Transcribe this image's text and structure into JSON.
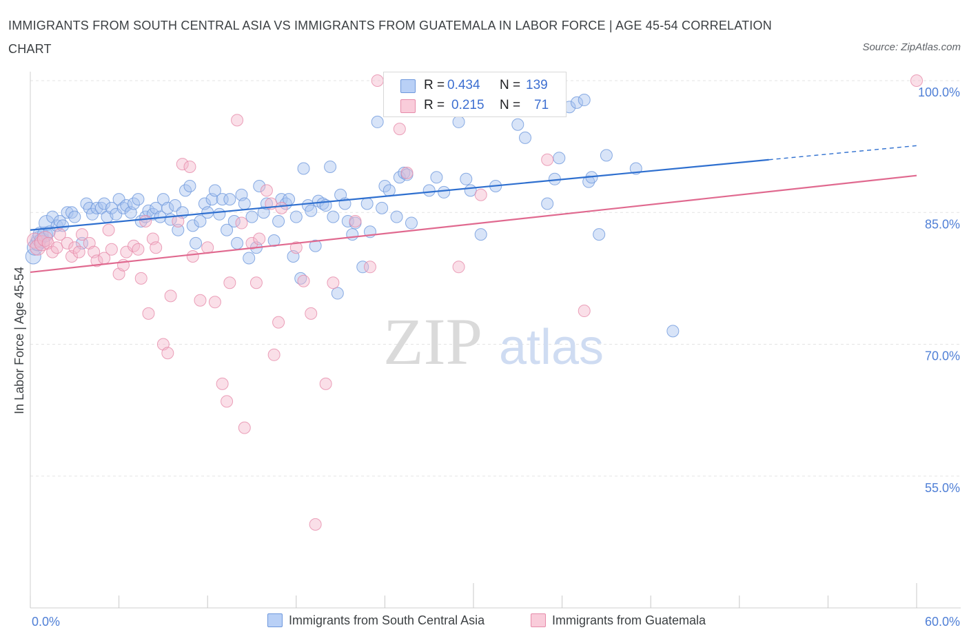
{
  "title": "IMMIGRANTS FROM SOUTH CENTRAL ASIA VS IMMIGRANTS FROM GUATEMALA IN LABOR FORCE | AGE 45-54 CORRELATION CHART",
  "source": "Source: ZipAtlas.com",
  "watermark": {
    "zip": "ZIP",
    "atlas": "atlas"
  },
  "legend_top": [
    {
      "r_label": "R =",
      "r_value": "0.434",
      "n_label": "N =",
      "n_value": "139"
    },
    {
      "r_label": "R =",
      "r_value": "0.215",
      "n_label": "N =",
      "n_value": "71"
    }
  ],
  "legend_bottom": [
    "Immigrants from South Central Asia",
    "Immigrants from Guatemala"
  ],
  "colors": {
    "blue_fill": "#a8c4f0",
    "blue_stroke": "#6d97dc",
    "blue_line": "#2e6fcf",
    "pink_fill": "#f5b8cc",
    "pink_stroke": "#e68aa9",
    "pink_line": "#e0698f",
    "tick_text": "#4f7fd6"
  },
  "chart_data": {
    "type": "scatter",
    "xlabel": "",
    "ylabel": "In Labor Force | Age 45-54",
    "xlim": [
      0,
      60
    ],
    "ylim": [
      40,
      100
    ],
    "x_ticks": [
      {
        "v": 0,
        "label": "0.0%"
      },
      {
        "v": 60,
        "label": "60.0%"
      }
    ],
    "y_ticks": [
      {
        "v": 100,
        "label": "100.0%"
      },
      {
        "v": 85,
        "label": "85.0%"
      },
      {
        "v": 70,
        "label": "70.0%"
      },
      {
        "v": 55,
        "label": "55.0%"
      }
    ],
    "series": [
      {
        "name": "Immigrants from South Central Asia",
        "r": 0.434,
        "n": 139,
        "trend": {
          "x0": 0,
          "y0": 83.0,
          "x1": 50,
          "y1": 91.0,
          "dash_to_x": 60,
          "dash_to_y": 92.6
        },
        "points": [
          [
            0.2,
            80.0
          ],
          [
            0.3,
            81.0
          ],
          [
            0.5,
            81.5
          ],
          [
            0.6,
            82.0
          ],
          [
            0.7,
            82.5
          ],
          [
            0.8,
            81.8
          ],
          [
            1.0,
            82.5
          ],
          [
            1.1,
            83.8
          ],
          [
            1.3,
            82.8
          ],
          [
            1.5,
            84.5
          ],
          [
            1.8,
            83.5
          ],
          [
            2.0,
            84.0
          ],
          [
            2.2,
            83.5
          ],
          [
            2.5,
            85.0
          ],
          [
            2.8,
            85.0
          ],
          [
            3.0,
            84.5
          ],
          [
            3.5,
            81.5
          ],
          [
            3.8,
            86.0
          ],
          [
            4.0,
            85.5
          ],
          [
            4.2,
            84.8
          ],
          [
            4.5,
            85.5
          ],
          [
            4.8,
            85.5
          ],
          [
            5.0,
            86.0
          ],
          [
            5.2,
            84.5
          ],
          [
            5.5,
            85.5
          ],
          [
            5.8,
            84.8
          ],
          [
            6.0,
            86.5
          ],
          [
            6.3,
            85.5
          ],
          [
            6.5,
            85.8
          ],
          [
            6.8,
            85.0
          ],
          [
            7.0,
            86.0
          ],
          [
            7.3,
            86.5
          ],
          [
            7.5,
            84.0
          ],
          [
            7.8,
            84.5
          ],
          [
            8.0,
            85.2
          ],
          [
            8.3,
            84.8
          ],
          [
            8.5,
            85.5
          ],
          [
            8.8,
            84.5
          ],
          [
            9.0,
            86.5
          ],
          [
            9.3,
            85.5
          ],
          [
            9.5,
            84.2
          ],
          [
            9.8,
            85.8
          ],
          [
            10.0,
            83.0
          ],
          [
            10.3,
            85.0
          ],
          [
            10.5,
            87.5
          ],
          [
            10.8,
            88.0
          ],
          [
            11.0,
            83.5
          ],
          [
            11.2,
            81.5
          ],
          [
            11.5,
            84.0
          ],
          [
            11.8,
            86.0
          ],
          [
            12.0,
            85.0
          ],
          [
            12.3,
            86.5
          ],
          [
            12.5,
            87.5
          ],
          [
            12.8,
            84.8
          ],
          [
            13.0,
            86.5
          ],
          [
            13.3,
            83.0
          ],
          [
            13.5,
            86.5
          ],
          [
            13.8,
            84.0
          ],
          [
            14.0,
            81.5
          ],
          [
            14.3,
            87.0
          ],
          [
            14.5,
            86.0
          ],
          [
            14.8,
            79.8
          ],
          [
            15.0,
            84.5
          ],
          [
            15.3,
            81.0
          ],
          [
            15.5,
            88.0
          ],
          [
            15.8,
            85.0
          ],
          [
            16.0,
            86.0
          ],
          [
            16.5,
            81.8
          ],
          [
            16.8,
            84.0
          ],
          [
            17.0,
            86.5
          ],
          [
            17.3,
            86.0
          ],
          [
            17.5,
            86.5
          ],
          [
            17.8,
            80.0
          ],
          [
            18.0,
            84.5
          ],
          [
            18.3,
            77.5
          ],
          [
            18.5,
            90.0
          ],
          [
            18.8,
            85.8
          ],
          [
            19.0,
            85.2
          ],
          [
            19.3,
            81.2
          ],
          [
            19.5,
            86.3
          ],
          [
            19.8,
            86.0
          ],
          [
            20.0,
            85.8
          ],
          [
            20.3,
            90.2
          ],
          [
            20.5,
            84.5
          ],
          [
            20.8,
            75.8
          ],
          [
            21.0,
            87.0
          ],
          [
            21.3,
            86.0
          ],
          [
            21.5,
            84.0
          ],
          [
            21.8,
            82.5
          ],
          [
            22.0,
            83.8
          ],
          [
            22.5,
            78.8
          ],
          [
            22.8,
            86.0
          ],
          [
            23.0,
            82.8
          ],
          [
            23.5,
            95.3
          ],
          [
            23.8,
            85.5
          ],
          [
            24.0,
            88.0
          ],
          [
            24.3,
            87.5
          ],
          [
            24.8,
            84.5
          ],
          [
            25.0,
            89.0
          ],
          [
            25.3,
            89.5
          ],
          [
            25.5,
            89.3
          ],
          [
            25.8,
            83.8
          ],
          [
            27.0,
            87.5
          ],
          [
            27.5,
            89.0
          ],
          [
            28.0,
            87.3
          ],
          [
            29.0,
            95.3
          ],
          [
            29.5,
            88.8
          ],
          [
            29.8,
            87.5
          ],
          [
            30.5,
            82.5
          ],
          [
            31.5,
            88.0
          ],
          [
            33.0,
            95.0
          ],
          [
            33.5,
            93.5
          ],
          [
            35.0,
            86.0
          ],
          [
            35.5,
            88.8
          ],
          [
            35.8,
            91.2
          ],
          [
            36.5,
            97.0
          ],
          [
            37.0,
            97.5
          ],
          [
            37.5,
            97.8
          ],
          [
            37.8,
            88.5
          ],
          [
            38.0,
            89.0
          ],
          [
            38.5,
            82.5
          ],
          [
            39.0,
            91.5
          ],
          [
            41.0,
            90.0
          ],
          [
            43.5,
            71.5
          ]
        ]
      },
      {
        "name": "Immigrants from Guatemala",
        "r": 0.215,
        "n": 71,
        "trend": {
          "x0": 0,
          "y0": 78.2,
          "x1": 60,
          "y1": 89.2
        },
        "points": [
          [
            0.3,
            81.8
          ],
          [
            0.5,
            81.0
          ],
          [
            0.8,
            81.5
          ],
          [
            1.0,
            82.0
          ],
          [
            1.2,
            81.5
          ],
          [
            1.5,
            80.5
          ],
          [
            1.8,
            81.0
          ],
          [
            2.0,
            82.5
          ],
          [
            2.5,
            81.5
          ],
          [
            2.8,
            80.0
          ],
          [
            3.0,
            81.0
          ],
          [
            3.3,
            80.5
          ],
          [
            3.5,
            82.5
          ],
          [
            4.0,
            81.5
          ],
          [
            4.3,
            80.5
          ],
          [
            4.5,
            79.5
          ],
          [
            5.0,
            79.8
          ],
          [
            5.3,
            83.0
          ],
          [
            5.5,
            80.8
          ],
          [
            6.0,
            78.0
          ],
          [
            6.3,
            79.0
          ],
          [
            6.5,
            80.5
          ],
          [
            7.0,
            81.2
          ],
          [
            7.3,
            80.8
          ],
          [
            7.5,
            77.5
          ],
          [
            7.8,
            84.0
          ],
          [
            8.0,
            73.5
          ],
          [
            8.3,
            82.0
          ],
          [
            8.5,
            81.0
          ],
          [
            9.0,
            70.0
          ],
          [
            9.3,
            69.0
          ],
          [
            9.5,
            75.5
          ],
          [
            10.0,
            84.0
          ],
          [
            10.3,
            90.5
          ],
          [
            10.8,
            90.2
          ],
          [
            11.0,
            80.0
          ],
          [
            11.5,
            75.0
          ],
          [
            12.0,
            81.0
          ],
          [
            12.5,
            74.8
          ],
          [
            13.0,
            65.5
          ],
          [
            13.3,
            63.5
          ],
          [
            13.5,
            77.0
          ],
          [
            14.0,
            95.5
          ],
          [
            14.3,
            83.8
          ],
          [
            14.5,
            60.5
          ],
          [
            15.0,
            81.5
          ],
          [
            15.3,
            77.0
          ],
          [
            15.5,
            82.0
          ],
          [
            16.0,
            87.5
          ],
          [
            16.3,
            86.0
          ],
          [
            16.5,
            68.8
          ],
          [
            16.8,
            72.5
          ],
          [
            17.0,
            85.5
          ],
          [
            18.0,
            81.0
          ],
          [
            18.5,
            77.2
          ],
          [
            19.0,
            73.5
          ],
          [
            19.3,
            49.5
          ],
          [
            20.0,
            65.5
          ],
          [
            20.5,
            77.0
          ],
          [
            22.0,
            84.0
          ],
          [
            23.0,
            78.8
          ],
          [
            23.5,
            100.0
          ],
          [
            25.0,
            94.5
          ],
          [
            25.5,
            89.5
          ],
          [
            29.0,
            78.8
          ],
          [
            30.5,
            87.0
          ],
          [
            33.5,
            100.0
          ],
          [
            35.0,
            91.0
          ],
          [
            37.5,
            73.8
          ],
          [
            60.0,
            100.0
          ]
        ]
      }
    ]
  }
}
